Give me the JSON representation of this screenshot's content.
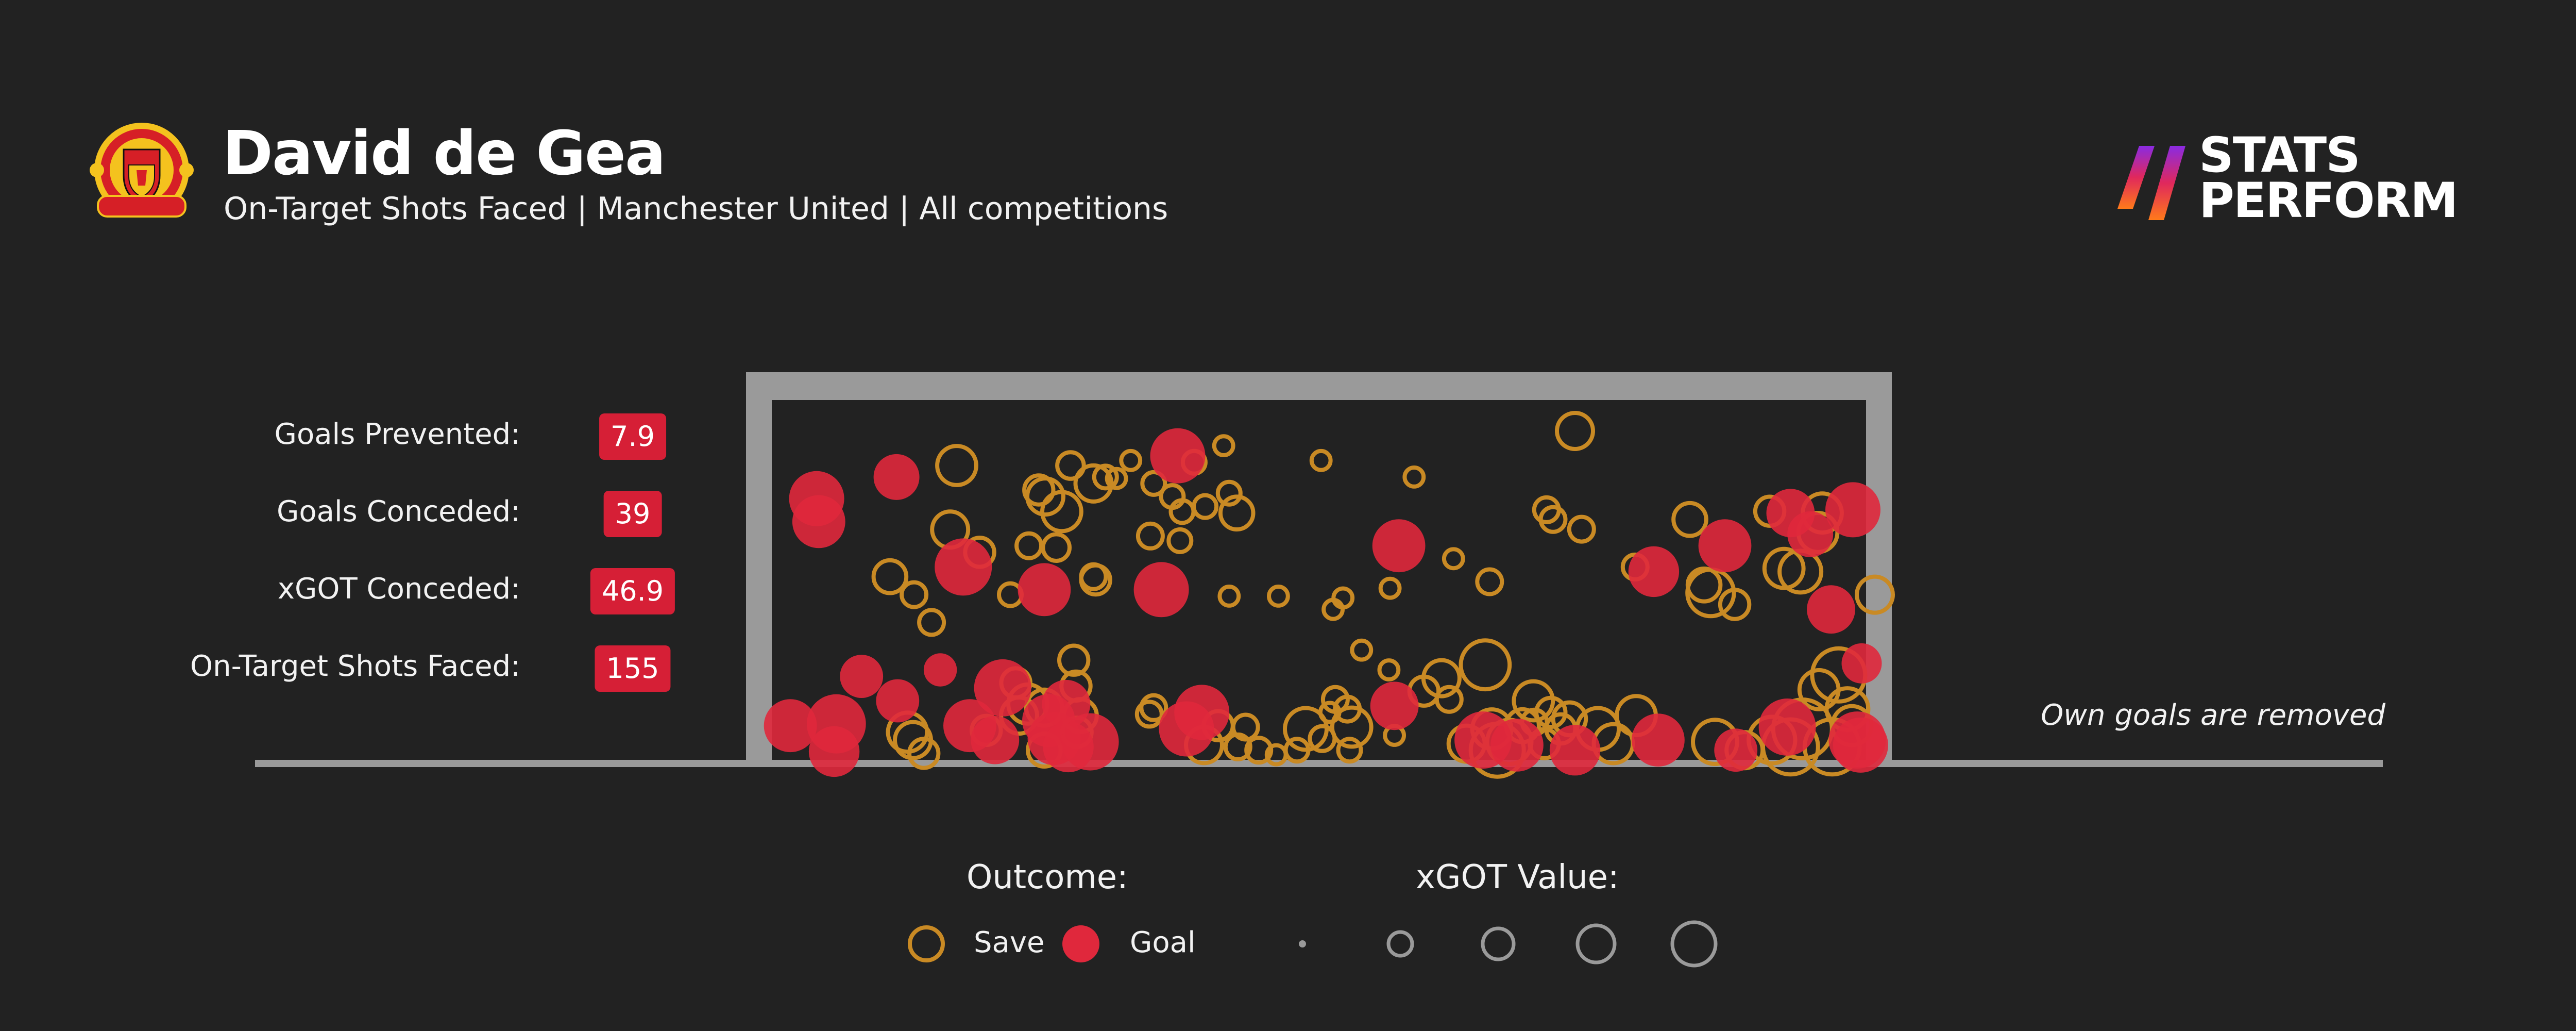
{
  "header": {
    "player_name": "David de Gea",
    "subtitle": "On-Target Shots Faced | Manchester United | All competitions",
    "crest_icon": "manchester-united-crest-icon",
    "brand_lines": [
      "STATS",
      "PERFORM"
    ],
    "brand_icon": "stats-perform-slashes-icon"
  },
  "stats": [
    {
      "label": "Goals Prevented:",
      "value": "7.9"
    },
    {
      "label": "Goals Conceded:",
      "value": "39"
    },
    {
      "label": "xGOT Conceded:",
      "value": "46.9"
    },
    {
      "label": "On-Target Shots Faced:",
      "value": "155"
    }
  ],
  "note": "Own goals are removed",
  "legend": {
    "outcome_title": "Outcome:",
    "save_label": "Save",
    "goal_label": "Goal",
    "xgot_title": "xGOT Value:",
    "xgot_sizes": [
      0.01,
      0.25,
      0.5,
      0.75,
      1.0
    ]
  },
  "colors": {
    "background": "#222222",
    "save": "#c98a24",
    "goal": "#e0283c",
    "frame": "#9a9a9a",
    "badge": "#d61f36",
    "legend_circle": "#9a9a9a"
  },
  "chart_data": {
    "type": "scatter",
    "title": "",
    "xlabel": "",
    "ylabel": "",
    "xlim": [
      0,
      1
    ],
    "ylim": [
      0,
      1
    ],
    "note": "Shot placement within goal mouth; x from left post (0) to right post (1), y from ground (0) to crossbar (1); size = xGOT",
    "points": [
      {
        "x": 0.041,
        "y": 0.726,
        "xgot": 0.55,
        "outcome": "Goal"
      },
      {
        "x": 0.043,
        "y": 0.662,
        "xgot": 0.5,
        "outcome": "Goal"
      },
      {
        "x": 0.114,
        "y": 0.786,
        "xgot": 0.35,
        "outcome": "Goal"
      },
      {
        "x": 0.169,
        "y": 0.818,
        "xgot": 0.3,
        "outcome": "Save"
      },
      {
        "x": 0.273,
        "y": 0.818,
        "xgot": 0.12,
        "outcome": "Save"
      },
      {
        "x": 0.371,
        "y": 0.845,
        "xgot": 0.55,
        "outcome": "Goal"
      },
      {
        "x": 0.502,
        "y": 0.832,
        "xgot": 0.05,
        "outcome": "Save"
      },
      {
        "x": 0.587,
        "y": 0.786,
        "xgot": 0.05,
        "outcome": "Save"
      },
      {
        "x": 0.734,
        "y": 0.914,
        "xgot": 0.25,
        "outcome": "Save"
      },
      {
        "x": 0.25,
        "y": 0.732,
        "xgot": 0.25,
        "outcome": "Save"
      },
      {
        "x": 0.265,
        "y": 0.69,
        "xgot": 0.3,
        "outcome": "Save"
      },
      {
        "x": 0.349,
        "y": 0.768,
        "xgot": 0.08,
        "outcome": "Save"
      },
      {
        "x": 0.366,
        "y": 0.732,
        "xgot": 0.08,
        "outcome": "Save"
      },
      {
        "x": 0.396,
        "y": 0.704,
        "xgot": 0.08,
        "outcome": "Save"
      },
      {
        "x": 0.418,
        "y": 0.741,
        "xgot": 0.08,
        "outcome": "Save"
      },
      {
        "x": 0.425,
        "y": 0.686,
        "xgot": 0.2,
        "outcome": "Save"
      },
      {
        "x": 0.375,
        "y": 0.69,
        "xgot": 0.08,
        "outcome": "Save"
      },
      {
        "x": 0.163,
        "y": 0.64,
        "xgot": 0.25,
        "outcome": "Save"
      },
      {
        "x": 0.26,
        "y": 0.59,
        "xgot": 0.12,
        "outcome": "Save"
      },
      {
        "x": 0.346,
        "y": 0.622,
        "xgot": 0.1,
        "outcome": "Save"
      },
      {
        "x": 0.373,
        "y": 0.609,
        "xgot": 0.08,
        "outcome": "Save"
      },
      {
        "x": 0.108,
        "y": 0.509,
        "xgot": 0.2,
        "outcome": "Save"
      },
      {
        "x": 0.175,
        "y": 0.536,
        "xgot": 0.6,
        "outcome": "Goal"
      },
      {
        "x": 0.249,
        "y": 0.473,
        "xgot": 0.5,
        "outcome": "Goal"
      },
      {
        "x": 0.294,
        "y": 0.509,
        "xgot": 0.1,
        "outcome": "Save"
      },
      {
        "x": 0.356,
        "y": 0.473,
        "xgot": 0.55,
        "outcome": "Goal"
      },
      {
        "x": 0.418,
        "y": 0.455,
        "xgot": 0.05,
        "outcome": "Save"
      },
      {
        "x": 0.463,
        "y": 0.455,
        "xgot": 0.05,
        "outcome": "Save"
      },
      {
        "x": 0.573,
        "y": 0.595,
        "xgot": 0.5,
        "outcome": "Goal"
      },
      {
        "x": 0.623,
        "y": 0.559,
        "xgot": 0.05,
        "outcome": "Save"
      },
      {
        "x": 0.565,
        "y": 0.477,
        "xgot": 0.05,
        "outcome": "Save"
      },
      {
        "x": 0.656,
        "y": 0.495,
        "xgot": 0.1,
        "outcome": "Save"
      },
      {
        "x": 0.708,
        "y": 0.695,
        "xgot": 0.1,
        "outcome": "Save"
      },
      {
        "x": 0.714,
        "y": 0.668,
        "xgot": 0.1,
        "outcome": "Save"
      },
      {
        "x": 0.74,
        "y": 0.641,
        "xgot": 0.1,
        "outcome": "Save"
      },
      {
        "x": 0.789,
        "y": 0.536,
        "xgot": 0.1,
        "outcome": "Save"
      },
      {
        "x": 0.806,
        "y": 0.523,
        "xgot": 0.45,
        "outcome": "Goal"
      },
      {
        "x": 0.852,
        "y": 0.486,
        "xgot": 0.2,
        "outcome": "Save"
      },
      {
        "x": 0.858,
        "y": 0.464,
        "xgot": 0.45,
        "outcome": "Save"
      },
      {
        "x": 0.839,
        "y": 0.668,
        "xgot": 0.2,
        "outcome": "Save"
      },
      {
        "x": 0.871,
        "y": 0.595,
        "xgot": 0.5,
        "outcome": "Goal"
      },
      {
        "x": 0.912,
        "y": 0.691,
        "xgot": 0.15,
        "outcome": "Save"
      },
      {
        "x": 0.931,
        "y": 0.686,
        "xgot": 0.4,
        "outcome": "Goal"
      },
      {
        "x": 0.96,
        "y": 0.686,
        "xgot": 0.3,
        "outcome": "Save"
      },
      {
        "x": 0.949,
        "y": 0.627,
        "xgot": 0.35,
        "outcome": "Goal"
      },
      {
        "x": 0.956,
        "y": 0.632,
        "xgot": 0.3,
        "outcome": "Save"
      },
      {
        "x": 0.925,
        "y": 0.532,
        "xgot": 0.3,
        "outcome": "Save"
      },
      {
        "x": 0.94,
        "y": 0.523,
        "xgot": 0.35,
        "outcome": "Save"
      },
      {
        "x": 0.988,
        "y": 0.695,
        "xgot": 0.55,
        "outcome": "Goal"
      },
      {
        "x": 0.968,
        "y": 0.418,
        "xgot": 0.4,
        "outcome": "Goal"
      },
      {
        "x": 0.88,
        "y": 0.432,
        "xgot": 0.15,
        "outcome": "Save"
      },
      {
        "x": 1.008,
        "y": 0.459,
        "xgot": 0.25,
        "outcome": "Save"
      },
      {
        "x": 0.996,
        "y": 0.268,
        "xgot": 0.25,
        "outcome": "Goal"
      },
      {
        "x": 0.975,
        "y": 0.236,
        "xgot": 0.6,
        "outcome": "Save"
      },
      {
        "x": 0.957,
        "y": 0.195,
        "xgot": 0.3,
        "outcome": "Save"
      },
      {
        "x": 0.983,
        "y": 0.141,
        "xgot": 0.35,
        "outcome": "Save"
      },
      {
        "x": 0.942,
        "y": 0.086,
        "xgot": 0.75,
        "outcome": "Save"
      },
      {
        "x": 0.928,
        "y": 0.091,
        "xgot": 0.6,
        "outcome": "Goal"
      },
      {
        "x": 0.969,
        "y": 0.036,
        "xgot": 0.65,
        "outcome": "Save"
      },
      {
        "x": 0.992,
        "y": 0.055,
        "xgot": 0.6,
        "outcome": "Goal"
      },
      {
        "x": 0.987,
        "y": 0.095,
        "xgot": 0.3,
        "outcome": "Save"
      },
      {
        "x": 0.931,
        "y": 0.036,
        "xgot": 0.65,
        "outcome": "Save"
      },
      {
        "x": 0.914,
        "y": 0.055,
        "xgot": 0.45,
        "outcome": "Save"
      },
      {
        "x": 0.889,
        "y": 0.027,
        "xgot": 0.25,
        "outcome": "Save"
      },
      {
        "x": 0.862,
        "y": 0.05,
        "xgot": 0.4,
        "outcome": "Save"
      },
      {
        "x": 0.81,
        "y": 0.055,
        "xgot": 0.5,
        "outcome": "Goal"
      },
      {
        "x": 0.79,
        "y": 0.123,
        "xgot": 0.3,
        "outcome": "Save"
      },
      {
        "x": 0.755,
        "y": 0.086,
        "xgot": 0.35,
        "outcome": "Save"
      },
      {
        "x": 0.769,
        "y": 0.045,
        "xgot": 0.3,
        "outcome": "Save"
      },
      {
        "x": 0.729,
        "y": 0.114,
        "xgot": 0.2,
        "outcome": "Save"
      },
      {
        "x": 0.712,
        "y": 0.132,
        "xgot": 0.15,
        "outcome": "Save"
      },
      {
        "x": 0.721,
        "y": 0.086,
        "xgot": 0.15,
        "outcome": "Save"
      },
      {
        "x": 0.706,
        "y": 0.045,
        "xgot": 0.15,
        "outcome": "Save"
      },
      {
        "x": 0.674,
        "y": 0.05,
        "xgot": 0.4,
        "outcome": "Save"
      },
      {
        "x": 0.663,
        "y": 0.027,
        "xgot": 0.6,
        "outcome": "Save"
      },
      {
        "x": 0.65,
        "y": 0.055,
        "xgot": 0.6,
        "outcome": "Goal"
      },
      {
        "x": 0.635,
        "y": 0.045,
        "xgot": 0.25,
        "outcome": "Save"
      },
      {
        "x": 0.658,
        "y": 0.086,
        "xgot": 0.3,
        "outcome": "Save"
      },
      {
        "x": 0.686,
        "y": 0.095,
        "xgot": 0.2,
        "outcome": "Save"
      },
      {
        "x": 0.696,
        "y": 0.164,
        "xgot": 0.3,
        "outcome": "Save"
      },
      {
        "x": 0.652,
        "y": 0.264,
        "xgot": 0.5,
        "outcome": "Save"
      },
      {
        "x": 0.612,
        "y": 0.227,
        "xgot": 0.25,
        "outcome": "Save"
      },
      {
        "x": 0.619,
        "y": 0.168,
        "xgot": 0.1,
        "outcome": "Save"
      },
      {
        "x": 0.596,
        "y": 0.191,
        "xgot": 0.15,
        "outcome": "Save"
      },
      {
        "x": 0.569,
        "y": 0.15,
        "xgot": 0.4,
        "outcome": "Goal"
      },
      {
        "x": 0.515,
        "y": 0.168,
        "xgot": 0.1,
        "outcome": "Save"
      },
      {
        "x": 0.539,
        "y": 0.305,
        "xgot": 0.05,
        "outcome": "Save"
      },
      {
        "x": 0.513,
        "y": 0.418,
        "xgot": 0.05,
        "outcome": "Save"
      },
      {
        "x": 0.522,
        "y": 0.45,
        "xgot": 0.05,
        "outcome": "Save"
      },
      {
        "x": 0.413,
        "y": 0.873,
        "xgot": 0.05,
        "outcome": "Save"
      },
      {
        "x": 0.386,
        "y": 0.827,
        "xgot": 0.08,
        "outcome": "Save"
      },
      {
        "x": 0.328,
        "y": 0.832,
        "xgot": 0.05,
        "outcome": "Save"
      },
      {
        "x": 0.315,
        "y": 0.782,
        "xgot": 0.05,
        "outcome": "Save"
      },
      {
        "x": 0.294,
        "y": 0.768,
        "xgot": 0.25,
        "outcome": "Save"
      },
      {
        "x": 0.305,
        "y": 0.786,
        "xgot": 0.08,
        "outcome": "Save"
      },
      {
        "x": 0.244,
        "y": 0.75,
        "xgot": 0.15,
        "outcome": "Save"
      },
      {
        "x": 0.19,
        "y": 0.577,
        "xgot": 0.15,
        "outcome": "Save"
      },
      {
        "x": 0.235,
        "y": 0.595,
        "xgot": 0.1,
        "outcome": "Save"
      },
      {
        "x": 0.296,
        "y": 0.5,
        "xgot": 0.15,
        "outcome": "Save"
      },
      {
        "x": 0.218,
        "y": 0.459,
        "xgot": 0.08,
        "outcome": "Save"
      },
      {
        "x": 0.13,
        "y": 0.459,
        "xgot": 0.1,
        "outcome": "Save"
      },
      {
        "x": 0.146,
        "y": 0.382,
        "xgot": 0.1,
        "outcome": "Save"
      },
      {
        "x": 0.082,
        "y": 0.232,
        "xgot": 0.3,
        "outcome": "Goal"
      },
      {
        "x": 0.154,
        "y": 0.25,
        "xgot": 0.15,
        "outcome": "Goal"
      },
      {
        "x": 0.115,
        "y": 0.164,
        "xgot": 0.3,
        "outcome": "Goal"
      },
      {
        "x": 0.017,
        "y": 0.095,
        "xgot": 0.5,
        "outcome": "Goal"
      },
      {
        "x": 0.059,
        "y": 0.1,
        "xgot": 0.65,
        "outcome": "Goal"
      },
      {
        "x": 0.057,
        "y": 0.023,
        "xgot": 0.45,
        "outcome": "Goal"
      },
      {
        "x": 0.124,
        "y": 0.077,
        "xgot": 0.3,
        "outcome": "Save"
      },
      {
        "x": 0.129,
        "y": 0.055,
        "xgot": 0.25,
        "outcome": "Save"
      },
      {
        "x": 0.139,
        "y": 0.018,
        "xgot": 0.15,
        "outcome": "Save"
      },
      {
        "x": 0.181,
        "y": 0.095,
        "xgot": 0.5,
        "outcome": "Goal"
      },
      {
        "x": 0.196,
        "y": 0.082,
        "xgot": 0.15,
        "outcome": "Save"
      },
      {
        "x": 0.204,
        "y": 0.055,
        "xgot": 0.4,
        "outcome": "Goal"
      },
      {
        "x": 0.211,
        "y": 0.2,
        "xgot": 0.6,
        "outcome": "Goal"
      },
      {
        "x": 0.223,
        "y": 0.214,
        "xgot": 0.15,
        "outcome": "Save"
      },
      {
        "x": 0.234,
        "y": 0.155,
        "xgot": 0.3,
        "outcome": "Save"
      },
      {
        "x": 0.226,
        "y": 0.123,
        "xgot": 0.25,
        "outcome": "Save"
      },
      {
        "x": 0.253,
        "y": 0.109,
        "xgot": 0.5,
        "outcome": "Goal"
      },
      {
        "x": 0.249,
        "y": 0.145,
        "xgot": 0.25,
        "outcome": "Save"
      },
      {
        "x": 0.258,
        "y": 0.059,
        "xgot": 0.5,
        "outcome": "Goal"
      },
      {
        "x": 0.271,
        "y": 0.036,
        "xgot": 0.45,
        "outcome": "Goal"
      },
      {
        "x": 0.249,
        "y": 0.027,
        "xgot": 0.2,
        "outcome": "Save"
      },
      {
        "x": 0.269,
        "y": 0.155,
        "xgot": 0.4,
        "outcome": "Goal"
      },
      {
        "x": 0.282,
        "y": 0.123,
        "xgot": 0.2,
        "outcome": "Save"
      },
      {
        "x": 0.279,
        "y": 0.077,
        "xgot": 0.15,
        "outcome": "Save"
      },
      {
        "x": 0.291,
        "y": 0.05,
        "xgot": 0.6,
        "outcome": "Goal"
      },
      {
        "x": 0.278,
        "y": 0.205,
        "xgot": 0.15,
        "outcome": "Save"
      },
      {
        "x": 0.276,
        "y": 0.277,
        "xgot": 0.15,
        "outcome": "Save"
      },
      {
        "x": 0.345,
        "y": 0.127,
        "xgot": 0.1,
        "outcome": "Save"
      },
      {
        "x": 0.349,
        "y": 0.145,
        "xgot": 0.1,
        "outcome": "Save"
      },
      {
        "x": 0.379,
        "y": 0.086,
        "xgot": 0.55,
        "outcome": "Goal"
      },
      {
        "x": 0.393,
        "y": 0.132,
        "xgot": 0.55,
        "outcome": "Goal"
      },
      {
        "x": 0.395,
        "y": 0.041,
        "xgot": 0.25,
        "outcome": "Save"
      },
      {
        "x": 0.408,
        "y": 0.095,
        "xgot": 0.15,
        "outcome": "Save"
      },
      {
        "x": 0.426,
        "y": 0.036,
        "xgot": 0.1,
        "outcome": "Save"
      },
      {
        "x": 0.433,
        "y": 0.091,
        "xgot": 0.1,
        "outcome": "Save"
      },
      {
        "x": 0.445,
        "y": 0.027,
        "xgot": 0.1,
        "outcome": "Save"
      },
      {
        "x": 0.461,
        "y": 0.014,
        "xgot": 0.05,
        "outcome": "Save"
      },
      {
        "x": 0.488,
        "y": 0.086,
        "xgot": 0.35,
        "outcome": "Save"
      },
      {
        "x": 0.48,
        "y": 0.027,
        "xgot": 0.08,
        "outcome": "Save"
      },
      {
        "x": 0.503,
        "y": 0.059,
        "xgot": 0.1,
        "outcome": "Save"
      },
      {
        "x": 0.51,
        "y": 0.132,
        "xgot": 0.05,
        "outcome": "Save"
      },
      {
        "x": 0.526,
        "y": 0.141,
        "xgot": 0.1,
        "outcome": "Save"
      },
      {
        "x": 0.53,
        "y": 0.091,
        "xgot": 0.3,
        "outcome": "Save"
      },
      {
        "x": 0.528,
        "y": 0.027,
        "xgot": 0.08,
        "outcome": "Save"
      },
      {
        "x": 0.564,
        "y": 0.25,
        "xgot": 0.05,
        "outcome": "Save"
      },
      {
        "x": 0.569,
        "y": 0.068,
        "xgot": 0.05,
        "outcome": "Save"
      },
      {
        "x": 0.681,
        "y": 0.041,
        "xgot": 0.5,
        "outcome": "Goal"
      },
      {
        "x": 0.734,
        "y": 0.027,
        "xgot": 0.45,
        "outcome": "Goal"
      },
      {
        "x": 0.881,
        "y": 0.027,
        "xgot": 0.3,
        "outcome": "Goal"
      },
      {
        "x": 0.995,
        "y": 0.041,
        "xgot": 0.55,
        "outcome": "Goal"
      },
      {
        "x": 0.697,
        "y": 0.105,
        "xgot": 0.1,
        "outcome": "Save"
      }
    ]
  }
}
